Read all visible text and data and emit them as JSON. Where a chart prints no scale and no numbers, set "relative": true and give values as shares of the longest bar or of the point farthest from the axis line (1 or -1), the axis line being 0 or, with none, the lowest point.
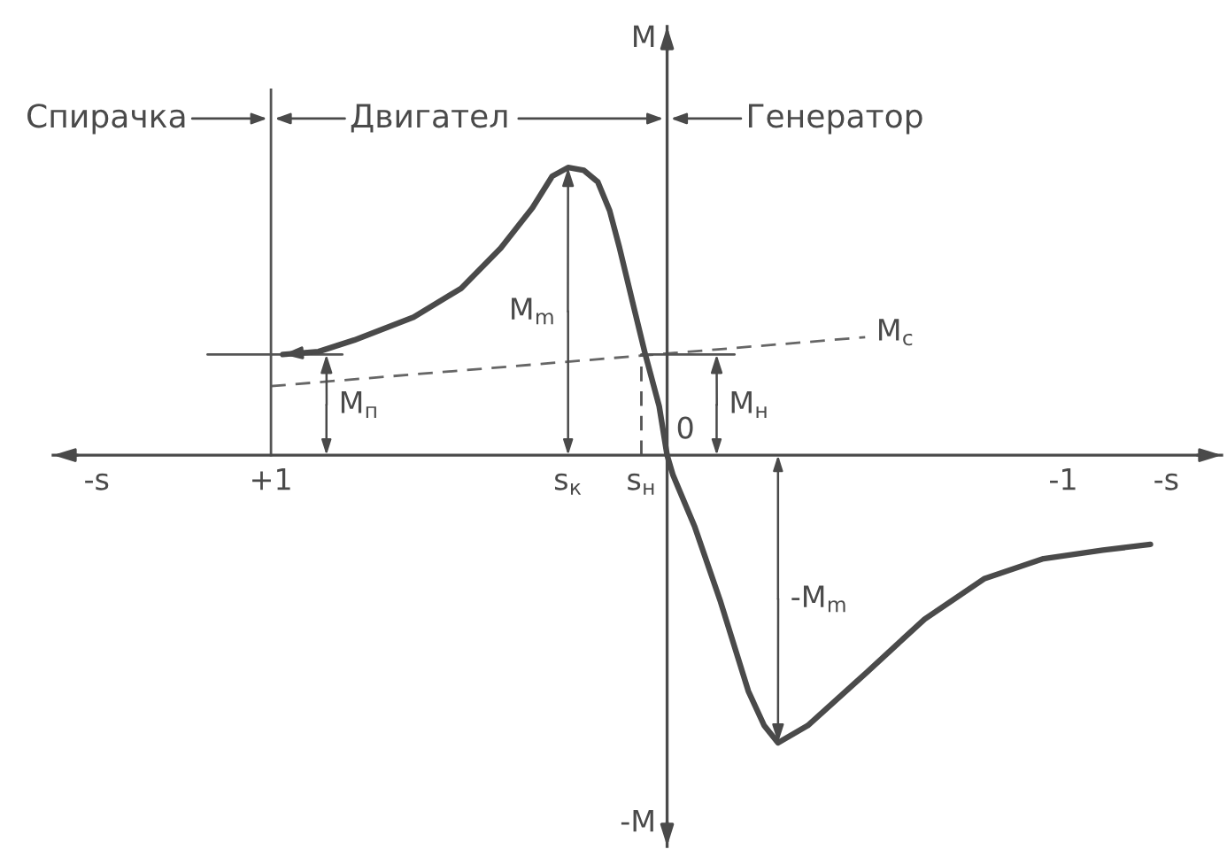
{
  "chart_data": {
    "type": "line",
    "relative": true,
    "xlim": [
      1.55,
      -1.4
    ],
    "xticks": [
      {
        "value": 1.44,
        "label": "-s"
      },
      {
        "value": 1,
        "label": "+1"
      },
      {
        "value": 0.25,
        "label": "s$_{к}$"
      },
      {
        "value": 0.065,
        "label": "s$_{н}$"
      },
      {
        "value": -1,
        "label": "-1"
      },
      {
        "value": -1.26,
        "label": "-s"
      }
    ],
    "ylabel": "M",
    "series": [
      {
        "color": "#4a4a4a",
        "x": [
          0.97,
          0.88,
          0.79,
          0.64,
          0.52,
          0.42,
          0.34,
          0.29,
          0.25,
          0.21,
          0.175,
          0.145,
          0.12,
          0.085,
          0.055,
          0.02,
          0,
          -0.015,
          -0.07,
          -0.135,
          -0.205,
          -0.245,
          -0.28,
          -0.355,
          -0.5,
          -0.65,
          -0.8,
          -0.95,
          -1.1,
          -1.22
        ],
        "values": [
          0.35,
          0.36,
          0.4,
          0.48,
          0.58,
          0.72,
          0.86,
          0.97,
          1.0,
          0.99,
          0.95,
          0.85,
          0.72,
          0.52,
          0.35,
          0.17,
          0,
          -0.07,
          -0.25,
          -0.51,
          -0.82,
          -0.94,
          -1.0,
          -0.94,
          -0.76,
          -0.57,
          -0.43,
          -0.36,
          -0.33,
          -0.31
        ]
      },
      {
        "name": "M$_{с}$",
        "color": "#666666",
        "line_style": "dashed",
        "x": [
          1.0,
          -0.5
        ],
        "values": [
          0.24,
          0.41
        ]
      },
      {
        "color": "#555555",
        "x": [
          0.065,
          -0.17
        ],
        "values": [
          0.35,
          0.35
        ]
      },
      {
        "color": "#555555",
        "line_style": "dashed",
        "x": [
          0.065,
          0.065
        ],
        "values": [
          0,
          0.35
        ]
      },
      {
        "color": "#555555",
        "x": [
          1.16,
          0.82
        ],
        "values": [
          0.35,
          0.35
        ]
      }
    ],
    "ref_lines": [
      {
        "axis": "x",
        "value": 1,
        "color": "#555555"
      }
    ],
    "annotations": [
      {
        "text": "M$_{m}$",
        "x": 0.25,
        "y": 1.0
      },
      {
        "text": "M$_{п}$",
        "x": 0.86,
        "y": 0.35
      },
      {
        "text": "M$_{н}$",
        "x": -0.125,
        "y": 0.35
      },
      {
        "text": "-M$_{m}$",
        "x": -0.28,
        "y": -1.0
      },
      {
        "text": "0",
        "x": 0,
        "y": 0
      },
      "Спирачка",
      "Двигател",
      "Генератор",
      "-M"
    ]
  }
}
